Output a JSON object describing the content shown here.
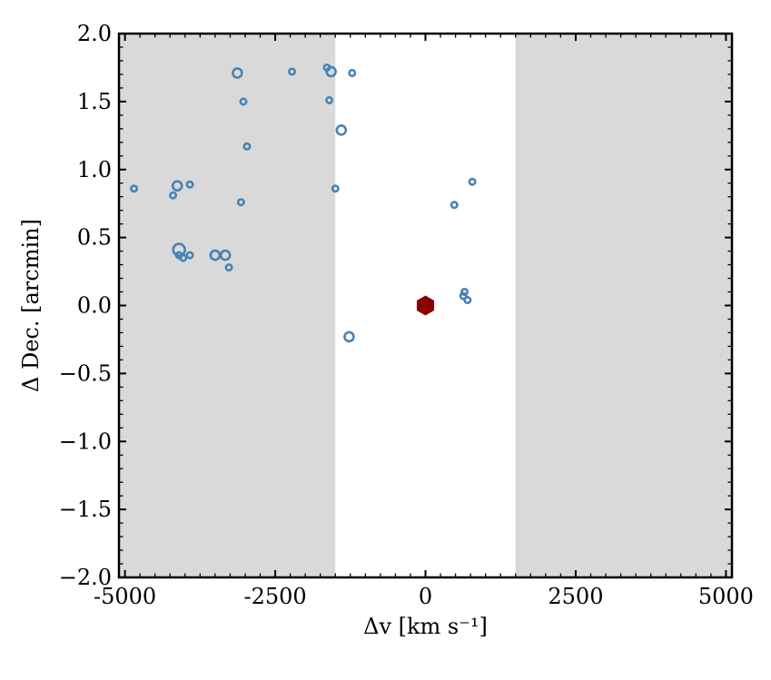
{
  "chart_data": {
    "type": "scatter",
    "xlabel": "Δv [km s⁻¹]",
    "ylabel": "Δ Dec. [arcmin]",
    "xlim": [
      -5100,
      5100
    ],
    "ylim": [
      -2.0,
      2.0
    ],
    "x_ticks": [
      -5000,
      -2500,
      0,
      2500,
      5000
    ],
    "x_tick_labels": [
      "-5000",
      "-2500",
      "0",
      "2500",
      "5000"
    ],
    "y_ticks": [
      2.0,
      1.5,
      1.0,
      0.5,
      0.0,
      -0.5,
      -1.0,
      -1.5,
      -2.0
    ],
    "y_tick_labels": [
      "2.0",
      "1.5",
      "1.0",
      "0.5",
      "0.0",
      "−0.5",
      "−1.0",
      "−1.5",
      "−2.0"
    ],
    "shaded_regions": [
      {
        "x0": -5100,
        "x1": -1500
      },
      {
        "x0": 1500,
        "x1": 5100
      }
    ],
    "colors": {
      "points": "#4682b4",
      "center": "#8b0000",
      "shade": "#d9d9d9"
    },
    "grid": false,
    "center_marker": {
      "x": 0,
      "y": 0.0,
      "shape": "hexagon"
    },
    "points": [
      {
        "x": -4850,
        "y": 0.86,
        "size": "small"
      },
      {
        "x": -4200,
        "y": 0.81,
        "size": "small"
      },
      {
        "x": -4130,
        "y": 0.88,
        "size": "medium"
      },
      {
        "x": -3920,
        "y": 0.89,
        "size": "small"
      },
      {
        "x": -4100,
        "y": 0.41,
        "size": "large"
      },
      {
        "x": -4100,
        "y": 0.37,
        "size": "small"
      },
      {
        "x": -4030,
        "y": 0.35,
        "size": "small"
      },
      {
        "x": -3920,
        "y": 0.37,
        "size": "small"
      },
      {
        "x": -3500,
        "y": 0.37,
        "size": "medium"
      },
      {
        "x": -3330,
        "y": 0.37,
        "size": "medium"
      },
      {
        "x": -3270,
        "y": 0.28,
        "size": "small"
      },
      {
        "x": -3070,
        "y": 0.76,
        "size": "small"
      },
      {
        "x": -3130,
        "y": 1.71,
        "size": "medium"
      },
      {
        "x": -3030,
        "y": 1.5,
        "size": "small"
      },
      {
        "x": -2970,
        "y": 1.17,
        "size": "small"
      },
      {
        "x": -2220,
        "y": 1.72,
        "size": "small"
      },
      {
        "x": -1640,
        "y": 1.75,
        "size": "small"
      },
      {
        "x": -1570,
        "y": 1.72,
        "size": "medium"
      },
      {
        "x": -1600,
        "y": 1.51,
        "size": "small"
      },
      {
        "x": -1500,
        "y": 0.86,
        "size": "small"
      },
      {
        "x": -1400,
        "y": 1.29,
        "size": "medium"
      },
      {
        "x": -1220,
        "y": 1.71,
        "size": "small"
      },
      {
        "x": -1270,
        "y": -0.23,
        "size": "medium"
      },
      {
        "x": 480,
        "y": 0.74,
        "size": "small"
      },
      {
        "x": 780,
        "y": 0.91,
        "size": "small"
      },
      {
        "x": 650,
        "y": 0.1,
        "size": "small"
      },
      {
        "x": 630,
        "y": 0.07,
        "size": "small"
      },
      {
        "x": 700,
        "y": 0.04,
        "size": "small"
      }
    ]
  }
}
